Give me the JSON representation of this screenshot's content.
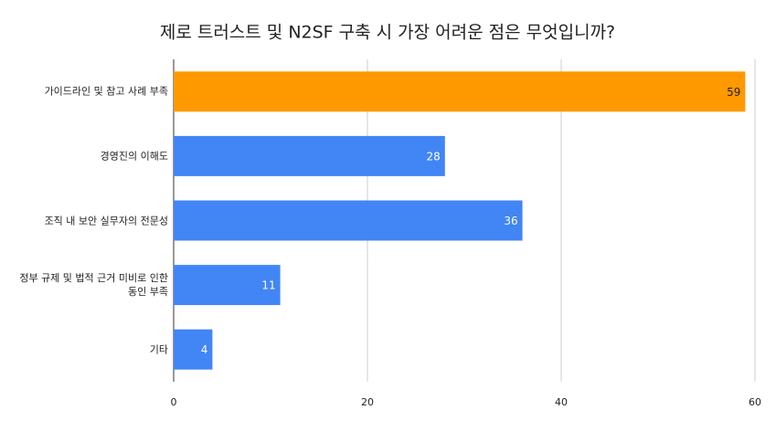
{
  "chart_data": {
    "type": "hbar",
    "title": "제로 트러스트 및 N2SF 구축 시 가장 어려운 점은 무엇입니까?",
    "categories": [
      "가이드라인 및 참고 사례 부족",
      "경영진의 이해도",
      "조직 내 보안 실무자의 전문성",
      "정부 규제 및 법적 근거 미비로 인한 동인 부족",
      "기타"
    ],
    "values": [
      59,
      28,
      36,
      11,
      4
    ],
    "colors": [
      "#ff9900",
      "#4285f4",
      "#4285f4",
      "#4285f4",
      "#4285f4"
    ],
    "label_colors": [
      "#222222",
      "#ffffff",
      "#ffffff",
      "#ffffff",
      "#ffffff"
    ],
    "xlim": [
      0,
      60
    ],
    "xticks": [
      0,
      20,
      40,
      60
    ],
    "grid": true
  }
}
